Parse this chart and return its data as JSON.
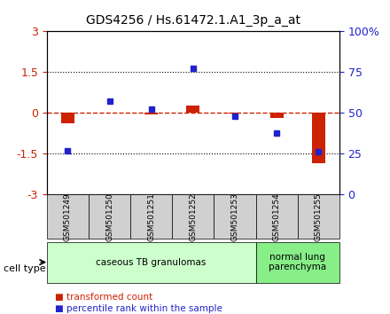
{
  "title": "GDS4256 / Hs.61472.1.A1_3p_a_at",
  "samples": [
    "GSM501249",
    "GSM501250",
    "GSM501251",
    "GSM501252",
    "GSM501253",
    "GSM501254",
    "GSM501255"
  ],
  "transformed_count": [
    -0.38,
    0.0,
    -0.05,
    0.28,
    -0.03,
    -0.18,
    -1.85
  ],
  "percentile_rank": [
    -1.4,
    0.45,
    0.15,
    1.65,
    -0.12,
    -0.72,
    -1.42
  ],
  "ylim_left": [
    -3,
    3
  ],
  "ylim_right": [
    0,
    100
  ],
  "yticks_left": [
    -3,
    -1.5,
    0,
    1.5,
    3
  ],
  "yticks_right": [
    0,
    25,
    50,
    75,
    100
  ],
  "hlines": [
    1.5,
    -1.5
  ],
  "red_color": "#cc2200",
  "blue_color": "#2222cc",
  "bar_width": 0.35,
  "groups": [
    {
      "label": "caseous TB granulomas",
      "samples": [
        0,
        1,
        2,
        3,
        4
      ],
      "color": "#ccffcc"
    },
    {
      "label": "normal lung\nparenchyma",
      "samples": [
        5,
        6
      ],
      "color": "#88ee88"
    }
  ],
  "legend_items": [
    {
      "label": "transformed count",
      "color": "#cc2200"
    },
    {
      "label": "percentile rank within the sample",
      "color": "#2222cc"
    }
  ],
  "cell_type_label": "cell type"
}
